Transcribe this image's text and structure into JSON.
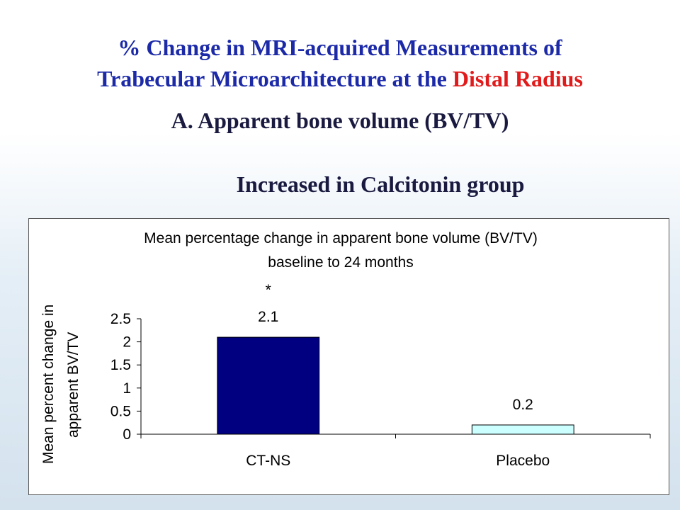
{
  "slide": {
    "title_line1": "% Change in MRI-acquired Measurements of",
    "title_line2_prefix": "Trabecular Microarchitecture at the ",
    "title_line2_highlight": "Distal Radius",
    "subtitle_a": "A. Apparent bone volume (BV/TV)",
    "subtitle_b": "Increased in Calcitonin group"
  },
  "colors": {
    "title_blue": "#1c2aa8",
    "highlight_red": "#e11b1b",
    "ct_ns_bar": "#000080",
    "placebo_bar": "#ccffff"
  },
  "chart_data": {
    "type": "bar",
    "title_line1": "Mean percentage change in apparent bone volume (BV/TV)",
    "title_line2": "baseline to 24 months",
    "ylabel_line1": "Mean percent change in",
    "ylabel_line2": "apparent BV/TV",
    "xlabel": "",
    "categories": [
      "CT-NS",
      "Placebo"
    ],
    "values": [
      2.1,
      0.2
    ],
    "data_labels": [
      "2.1",
      "0.2"
    ],
    "annotation": "*",
    "bar_colors": [
      "#000080",
      "#ccffff"
    ],
    "ylim": [
      0,
      2.5
    ],
    "yticks": [
      0,
      0.5,
      1,
      1.5,
      2,
      2.5
    ],
    "ytick_labels": [
      "0",
      "0.5",
      "1",
      "1.5",
      "2",
      "2.5"
    ],
    "grid": false,
    "legend": "none"
  }
}
